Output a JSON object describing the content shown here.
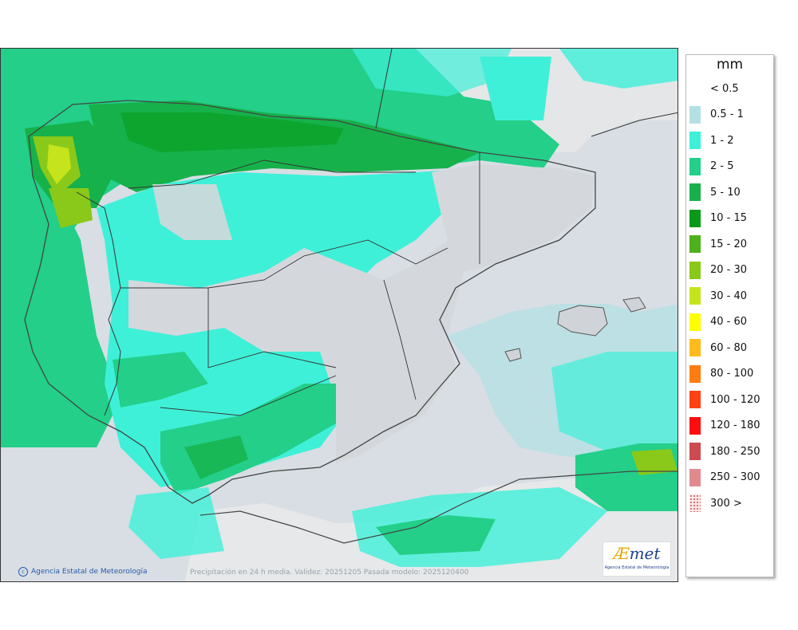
{
  "legend": {
    "unit": "mm",
    "items": [
      {
        "label": "< 0.5",
        "color": "#ffffff"
      },
      {
        "label": "0.5 - 1",
        "color": "#b5e0e3"
      },
      {
        "label": "1 - 2",
        "color": "#3ff0d8"
      },
      {
        "label": "2 - 5",
        "color": "#23cf89"
      },
      {
        "label": "5 - 10",
        "color": "#16b14a"
      },
      {
        "label": "10 - 15",
        "color": "#0a9a1a"
      },
      {
        "label": "15 - 20",
        "color": "#4db11c"
      },
      {
        "label": "20 - 30",
        "color": "#8ac91a"
      },
      {
        "label": "30 - 40",
        "color": "#c6e41b"
      },
      {
        "label": "40 - 60",
        "color": "#ffff00"
      },
      {
        "label": "60 - 80",
        "color": "#ffbb1c"
      },
      {
        "label": "80 - 100",
        "color": "#ff7d10"
      },
      {
        "label": "100 - 120",
        "color": "#ff4213"
      },
      {
        "label": "120 - 180",
        "color": "#ff0d0d"
      },
      {
        "label": "180 - 250",
        "color": "#cc4b50"
      },
      {
        "label": "250 - 300",
        "color": "#e08a90"
      },
      {
        "label": "300 >",
        "color": "#fbe7e7",
        "pattern": "dots"
      }
    ]
  },
  "map": {
    "credit": "Agencia Estatal de Meteorología",
    "caption": "Precipitación en 24 h media. Validez: 20251205 Pasada modelo: 2025120400",
    "logo": {
      "word_a": "Æ",
      "word_rest": "met",
      "subtitle": "Agencia Estatal de Meteorología"
    }
  }
}
